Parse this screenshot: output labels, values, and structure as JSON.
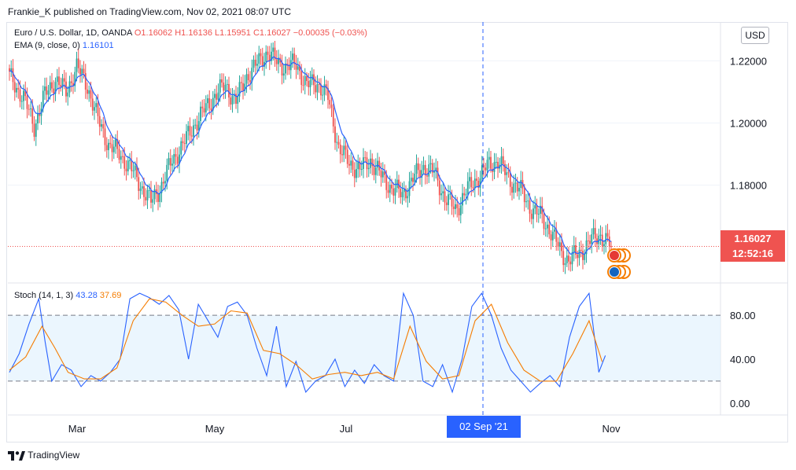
{
  "header": {
    "published": "Frankie_K published on TradingView.com, Nov 02, 2021 08:07 UTC"
  },
  "legend_main": {
    "symbol": "Euro / U.S. Dollar, 1D, OANDA",
    "o": "O1.16062",
    "h": "H1.16136",
    "l": "L1.15951",
    "c": "C1.16027",
    "chg": "−0.00035 (−0.03%)",
    "ema_label": "EMA (9, close, 0)",
    "ema_value": "1.16101"
  },
  "legend_stoch": {
    "label": "Stoch (14, 1, 3)",
    "k": "43.28",
    "d": "37.69"
  },
  "currency_button": "USD",
  "price_tag": {
    "price": "1.16027",
    "countdown": "12:52:16"
  },
  "crosshair_date": "02 Sep '21",
  "footer": {
    "logo_text": "TradingView"
  },
  "colors": {
    "up": "#26a69a",
    "down": "#ef5350",
    "ema": "#2962ff",
    "k": "#2962ff",
    "d": "#f57c00",
    "band": "#e3f2fd"
  },
  "chart_data": [
    {
      "type": "candlestick",
      "title": "Euro / U.S. Dollar, 1D, OANDA",
      "x_tick_labels": [
        "Mar",
        "May",
        "Jul",
        "Nov"
      ],
      "y_tick_labels": [
        "1.22000",
        "1.20000",
        "1.18000"
      ],
      "ylim": [
        1.149,
        1.232
      ],
      "grid": true,
      "close_path": [
        [
          0,
          1.215
        ],
        [
          8,
          1.208
        ],
        [
          14,
          1.199
        ],
        [
          20,
          1.209
        ],
        [
          26,
          1.214
        ],
        [
          32,
          1.21
        ],
        [
          38,
          1.218
        ],
        [
          44,
          1.212
        ],
        [
          50,
          1.201
        ],
        [
          56,
          1.193
        ],
        [
          62,
          1.19
        ],
        [
          68,
          1.186
        ],
        [
          74,
          1.18
        ],
        [
          80,
          1.1745
        ],
        [
          86,
          1.18
        ],
        [
          92,
          1.188
        ],
        [
          98,
          1.193
        ],
        [
          104,
          1.199
        ],
        [
          110,
          1.204
        ],
        [
          116,
          1.209
        ],
        [
          122,
          1.212
        ],
        [
          128,
          1.207
        ],
        [
          134,
          1.215
        ],
        [
          140,
          1.219
        ],
        [
          146,
          1.223
        ],
        [
          150,
          1.22
        ],
        [
          156,
          1.218
        ],
        [
          162,
          1.219
        ],
        [
          168,
          1.212
        ],
        [
          174,
          1.213
        ],
        [
          180,
          1.208
        ],
        [
          186,
          1.192
        ],
        [
          192,
          1.187
        ],
        [
          198,
          1.185
        ],
        [
          204,
          1.188
        ],
        [
          210,
          1.183
        ],
        [
          216,
          1.179
        ],
        [
          222,
          1.177
        ],
        [
          228,
          1.182
        ],
        [
          234,
          1.186
        ],
        [
          240,
          1.184
        ],
        [
          246,
          1.176
        ],
        [
          252,
          1.172
        ],
        [
          258,
          1.178
        ],
        [
          264,
          1.182
        ],
        [
          270,
          1.186
        ],
        [
          276,
          1.188
        ],
        [
          282,
          1.182
        ],
        [
          288,
          1.179
        ],
        [
          294,
          1.173
        ],
        [
          300,
          1.17
        ],
        [
          306,
          1.165
        ],
        [
          312,
          1.158
        ],
        [
          316,
          1.156
        ],
        [
          322,
          1.158
        ],
        [
          328,
          1.162
        ],
        [
          334,
          1.164
        ],
        [
          340,
          1.1603
        ]
      ],
      "series": [
        {
          "name": "EMA (9, close, 0)",
          "last": 1.16101
        }
      ],
      "last_price": 1.16027
    },
    {
      "type": "line",
      "title": "Stoch (14, 1, 3)",
      "y_tick_labels": [
        "80.00",
        "40.00",
        "0.00"
      ],
      "ylim": [
        -8,
        108
      ],
      "bands": [
        20,
        80
      ],
      "series": [
        {
          "name": "K",
          "points": [
            [
              0,
              28
            ],
            [
              6,
              45
            ],
            [
              12,
              72
            ],
            [
              18,
              95
            ],
            [
              22,
              55
            ],
            [
              26,
              20
            ],
            [
              32,
              35
            ],
            [
              38,
              30
            ],
            [
              44,
              15
            ],
            [
              50,
              25
            ],
            [
              56,
              20
            ],
            [
              62,
              28
            ],
            [
              68,
              40
            ],
            [
              74,
              95
            ],
            [
              80,
              100
            ],
            [
              86,
              96
            ],
            [
              92,
              90
            ],
            [
              98,
              98
            ],
            [
              104,
              85
            ],
            [
              110,
              40
            ],
            [
              116,
              90
            ],
            [
              122,
              75
            ],
            [
              128,
              60
            ],
            [
              134,
              88
            ],
            [
              140,
              92
            ],
            [
              146,
              80
            ],
            [
              152,
              50
            ],
            [
              158,
              25
            ],
            [
              164,
              70
            ],
            [
              170,
              15
            ],
            [
              176,
              38
            ],
            [
              182,
              10
            ],
            [
              188,
              20
            ],
            [
              194,
              25
            ],
            [
              200,
              40
            ],
            [
              206,
              15
            ],
            [
              212,
              30
            ],
            [
              218,
              18
            ],
            [
              224,
              35
            ],
            [
              230,
              25
            ],
            [
              236,
              20
            ],
            [
              242,
              100
            ],
            [
              248,
              80
            ],
            [
              254,
              20
            ],
            [
              260,
              15
            ],
            [
              266,
              35
            ],
            [
              272,
              10
            ],
            [
              278,
              40
            ],
            [
              284,
              88
            ],
            [
              290,
              100
            ],
            [
              296,
              80
            ],
            [
              302,
              50
            ],
            [
              308,
              30
            ],
            [
              314,
              20
            ],
            [
              320,
              10
            ],
            [
              326,
              18
            ],
            [
              332,
              25
            ],
            [
              338,
              15
            ],
            [
              344,
              60
            ],
            [
              350,
              88
            ],
            [
              356,
              100
            ],
            [
              362,
              28
            ],
            [
              366,
              43.28
            ]
          ]
        },
        {
          "name": "D",
          "points": [
            [
              0,
              30
            ],
            [
              10,
              42
            ],
            [
              20,
              70
            ],
            [
              28,
              50
            ],
            [
              36,
              28
            ],
            [
              46,
              22
            ],
            [
              56,
              22
            ],
            [
              66,
              32
            ],
            [
              76,
              75
            ],
            [
              86,
              95
            ],
            [
              96,
              92
            ],
            [
              106,
              80
            ],
            [
              116,
              70
            ],
            [
              126,
              72
            ],
            [
              136,
              84
            ],
            [
              146,
              82
            ],
            [
              156,
              48
            ],
            [
              166,
              45
            ],
            [
              176,
              35
            ],
            [
              186,
              22
            ],
            [
              196,
              26
            ],
            [
              206,
              28
            ],
            [
              216,
              25
            ],
            [
              226,
              28
            ],
            [
              236,
              22
            ],
            [
              246,
              70
            ],
            [
              256,
              38
            ],
            [
              266,
              22
            ],
            [
              276,
              25
            ],
            [
              286,
              75
            ],
            [
              296,
              90
            ],
            [
              306,
              55
            ],
            [
              316,
              30
            ],
            [
              326,
              20
            ],
            [
              336,
              20
            ],
            [
              346,
              45
            ],
            [
              356,
              75
            ],
            [
              364,
              37.69
            ]
          ]
        }
      ],
      "last_k": 43.28,
      "last_d": 37.69
    }
  ]
}
